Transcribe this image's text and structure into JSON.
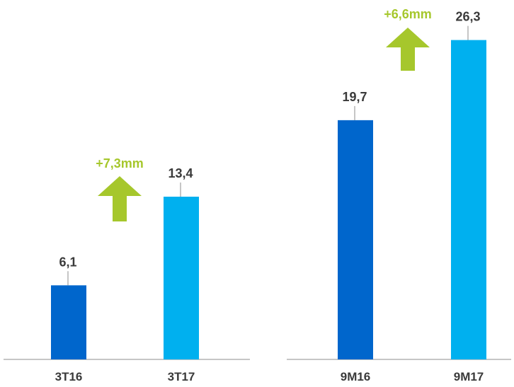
{
  "chart_data": [
    {
      "type": "bar",
      "categories": [
        "3T16",
        "3T17"
      ],
      "values": [
        6.1,
        13.4
      ],
      "value_labels": [
        "6,1",
        "13,4"
      ],
      "ylim": [
        0,
        27.5
      ],
      "colors": [
        "#0066cc",
        "#00b0ef"
      ],
      "change_label": "+7,3mm",
      "change_color": "#a6c72c",
      "change_icon": "arrow-up-icon"
    },
    {
      "type": "bar",
      "categories": [
        "9M16",
        "9M17"
      ],
      "values": [
        19.7,
        26.3
      ],
      "value_labels": [
        "19,7",
        "26,3"
      ],
      "ylim": [
        0,
        27.5
      ],
      "colors": [
        "#0066cc",
        "#00b0ef"
      ],
      "change_label": "+6,6mm",
      "change_color": "#a6c72c",
      "change_icon": "arrow-up-icon"
    }
  ]
}
